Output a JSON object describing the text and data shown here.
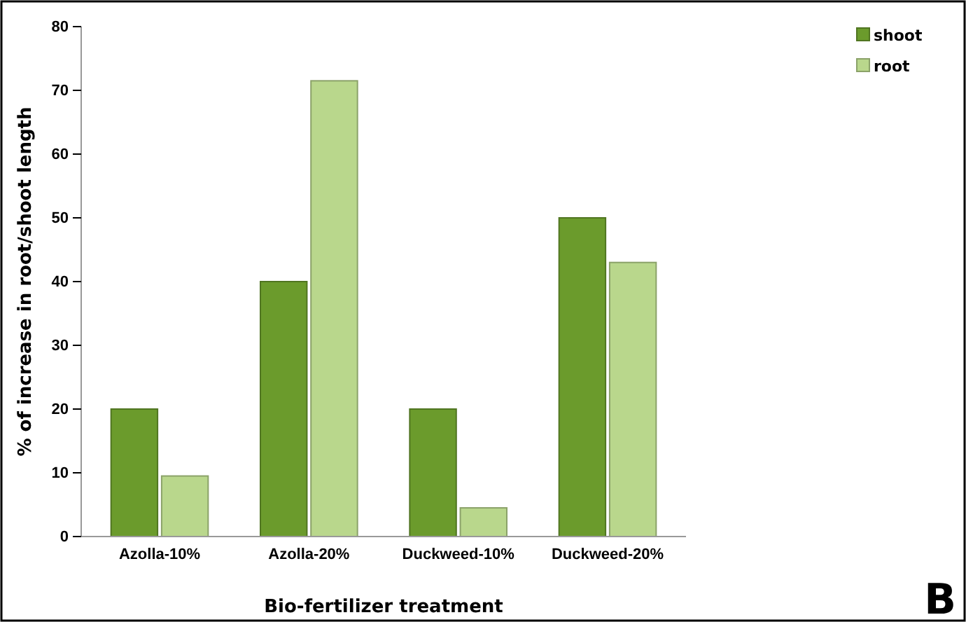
{
  "chart_data": {
    "type": "bar",
    "xlabel": "Bio-fertilizer treatment",
    "ylabel": "% of increase in root/shoot length",
    "categories": [
      "Azolla-10%",
      "Azolla-20%",
      "Duckweed-10%",
      "Duckweed-20%"
    ],
    "series": [
      {
        "name": "shoot",
        "color": "#6b9b2c",
        "values": [
          20,
          40,
          20,
          50
        ]
      },
      {
        "name": "root",
        "color": "#b9d78c",
        "values": [
          9.5,
          71.5,
          4.5,
          43
        ]
      }
    ],
    "ylim": [
      0,
      80
    ],
    "yticks": [
      0,
      10,
      20,
      30,
      40,
      50,
      60,
      70,
      80
    ],
    "grid": false,
    "legend": "top right",
    "annotations": [
      "B"
    ]
  }
}
